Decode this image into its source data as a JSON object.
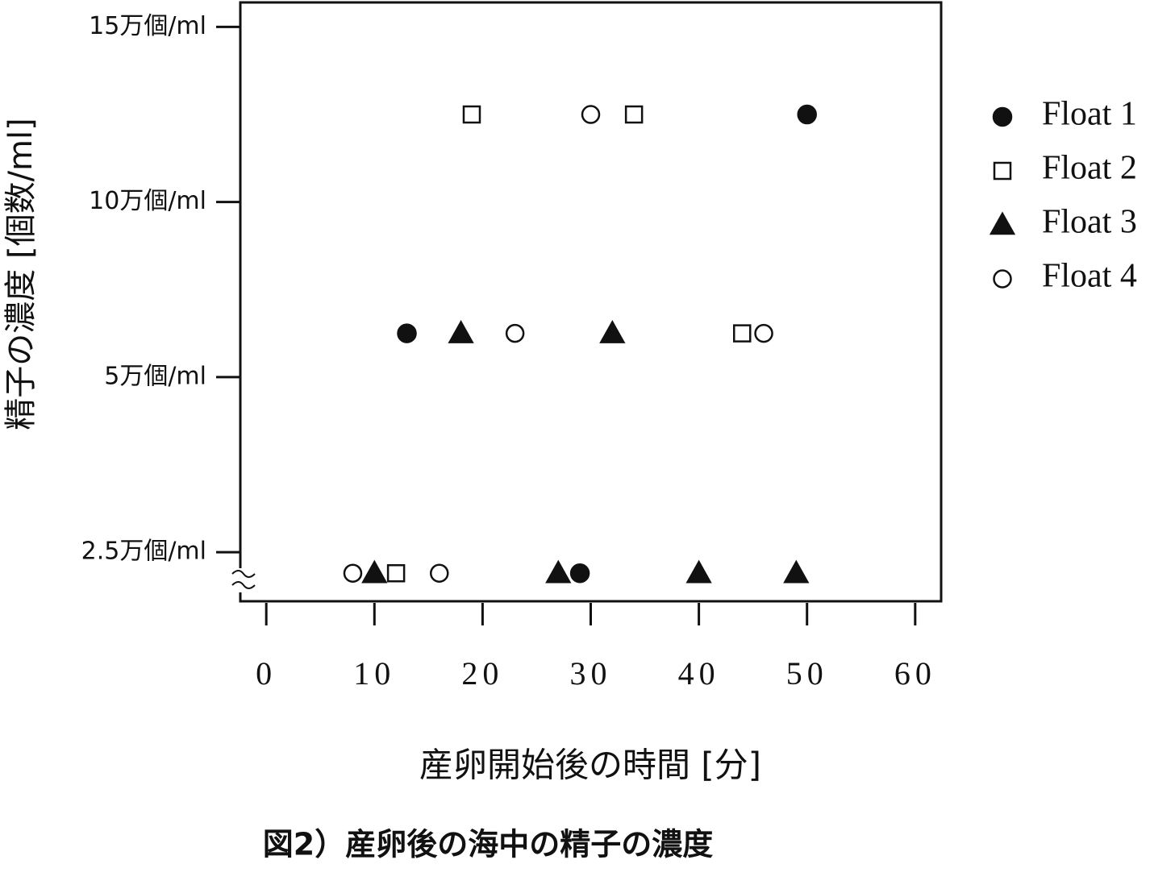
{
  "chart_data": {
    "type": "scatter",
    "title": "図2）産卵後の海中の精子の濃度",
    "xlabel": "産卵開始後の時間 [分]",
    "ylabel": "精子の濃度 [個数/ml]",
    "xlim": [
      -2.4,
      62.4
    ],
    "xticks": [
      0,
      10,
      20,
      30,
      40,
      50,
      60
    ],
    "ylim": [
      1.8,
      15.7
    ],
    "yticks": [
      {
        "value": 2.5,
        "label": "2.5万個/ml"
      },
      {
        "value": 5,
        "label": "5万個/ml"
      },
      {
        "value": 10,
        "label": "10万個/ml"
      },
      {
        "value": 15,
        "label": "15万個/ml"
      }
    ],
    "legend": "right",
    "series": [
      {
        "name": "Float 1",
        "color": "#111111",
        "marker": "filled-circle",
        "x": [
          13,
          50,
          29
        ],
        "values": [
          6.25,
          12.5,
          2.2
        ]
      },
      {
        "name": "Float 2",
        "color": "#111111",
        "marker": "open-square",
        "x": [
          19,
          34,
          44,
          12
        ],
        "values": [
          12.5,
          12.5,
          6.25,
          2.2
        ]
      },
      {
        "name": "Float 3",
        "color": "#111111",
        "marker": "filled-triangle",
        "x": [
          18,
          32,
          10,
          27,
          40,
          49
        ],
        "values": [
          6.25,
          6.25,
          2.2,
          2.2,
          2.2,
          2.2
        ]
      },
      {
        "name": "Float 4",
        "color": "#111111",
        "marker": "open-circle",
        "x": [
          30,
          23,
          46,
          8,
          16
        ],
        "values": [
          12.5,
          6.25,
          6.25,
          2.2,
          2.2
        ]
      }
    ]
  }
}
